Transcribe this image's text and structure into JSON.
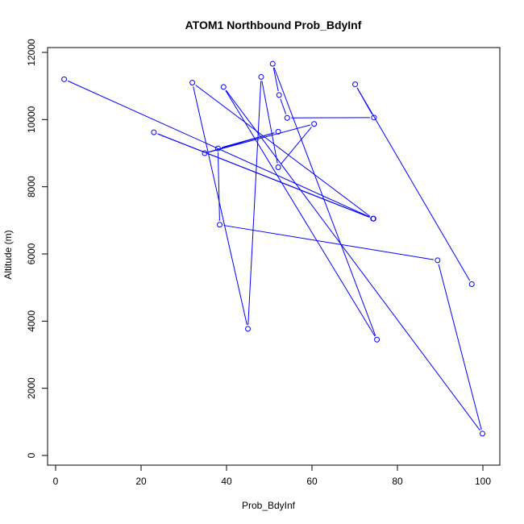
{
  "chart_data": {
    "type": "line",
    "title": "ATOM1 Northbound Prob_BdyInf",
    "xlabel": "Prob_BdyInf",
    "ylabel": "Altitude (m)",
    "xlim": [
      0,
      100
    ],
    "ylim": [
      0,
      12000
    ],
    "xticks": [
      0,
      20,
      40,
      60,
      80,
      100
    ],
    "yticks": [
      0,
      2000,
      4000,
      6000,
      8000,
      10000,
      12000
    ],
    "grid": false,
    "line_color": "#0000ff",
    "marker": "open-circle",
    "x": [
      2.0,
      74.4,
      23.0,
      74.3,
      32.0,
      45.0,
      48.1,
      52.1,
      60.5,
      34.9,
      52.1,
      38.0,
      38.4,
      89.4,
      99.9,
      39.3,
      75.2,
      50.8,
      52.3,
      54.2,
      74.5,
      70.1,
      97.4
    ],
    "y": [
      11200,
      7050,
      9620,
      7050,
      11100,
      3770,
      11270,
      8580,
      9870,
      9000,
      9640,
      9140,
      6870,
      5810,
      650,
      10970,
      3450,
      11660,
      10730,
      10050,
      10060,
      11050,
      5100
    ]
  }
}
